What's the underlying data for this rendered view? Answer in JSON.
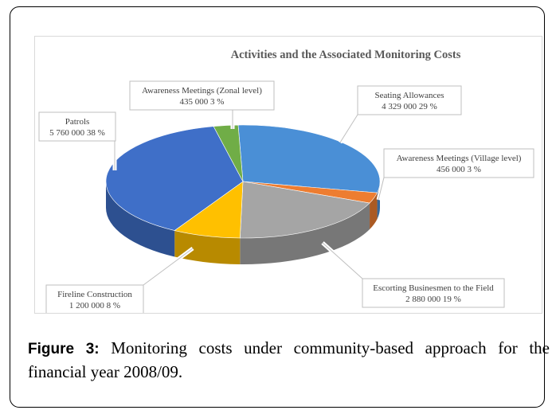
{
  "chart_data": {
    "type": "pie",
    "title": "Activities and the Associated Monitoring Costs",
    "slices": [
      {
        "name": "Seating Allowances",
        "value": 4329000,
        "value_label": "4 329 000",
        "percent_label": "29 %",
        "color": "#4A8FD6"
      },
      {
        "name": "Awareness Meetings (Village  level)",
        "value": 456000,
        "value_label": "456 000",
        "percent_label": "3 %",
        "color": "#ED7D31"
      },
      {
        "name": "Escorting Businesmen to the Field",
        "value": 2880000,
        "value_label": "2 880 000",
        "percent_label": "19 %",
        "color": "#A5A5A5"
      },
      {
        "name": "Fireline  Construction",
        "value": 1200000,
        "value_label": "1 200 000",
        "percent_label": "8 %",
        "color": "#FFC000"
      },
      {
        "name": "Patrols",
        "value": 5760000,
        "value_label": "5 760 000",
        "percent_label": "38 %",
        "color": "#3F6FC8"
      },
      {
        "name": "Awareness Meetings  (Zonal level)",
        "value": 435000,
        "value_label": "435 000",
        "percent_label": "3 %",
        "color": "#70AD47"
      }
    ]
  },
  "caption": {
    "figure_label": "Figure 3:",
    "text": "Monitoring costs under community-based approach for the financial year 2008/09."
  }
}
